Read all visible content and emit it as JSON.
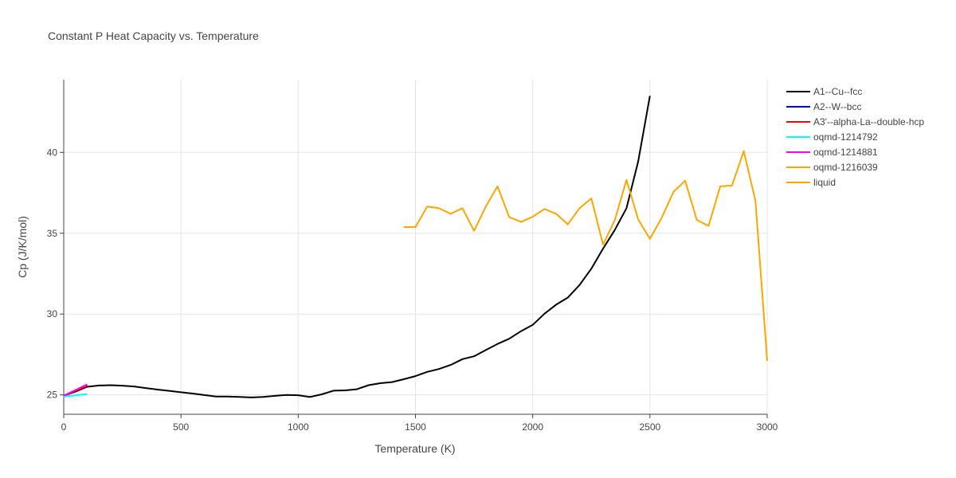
{
  "chart_data": {
    "type": "line",
    "title": "Constant P Heat Capacity vs. Temperature",
    "xlabel": "Temperature (K)",
    "ylabel": "Cp (J/K/mol)",
    "xlim": [
      0,
      3000
    ],
    "ylim": [
      23.8,
      44.5
    ],
    "xticks": [
      0,
      500,
      1000,
      1500,
      2000,
      2500,
      3000
    ],
    "yticks": [
      25,
      30,
      35,
      40
    ],
    "grid": true,
    "legend_position": "top-right",
    "series": [
      {
        "name": "A1--Cu--fcc",
        "color": "#000000",
        "x": [
          0,
          50,
          100,
          150,
          200,
          250,
          300,
          350,
          400,
          450,
          500,
          550,
          600,
          650,
          700,
          750,
          800,
          850,
          900,
          950,
          1000,
          1050,
          1100,
          1150,
          1200,
          1250,
          1300,
          1350,
          1400,
          1450,
          1500,
          1550,
          1600,
          1650,
          1700,
          1750,
          1800,
          1850,
          1900,
          1950,
          2000,
          2050,
          2100,
          2150,
          2200,
          2250,
          2300,
          2350,
          2400,
          2450,
          2500
        ],
        "y": [
          24.95,
          25.2,
          25.5,
          25.58,
          25.6,
          25.57,
          25.52,
          25.42,
          25.33,
          25.25,
          25.16,
          25.08,
          24.99,
          24.9,
          24.9,
          24.87,
          24.84,
          24.87,
          24.94,
          25.0,
          24.98,
          24.87,
          25.03,
          25.26,
          25.28,
          25.35,
          25.6,
          25.72,
          25.79,
          25.97,
          26.16,
          26.42,
          26.6,
          26.85,
          27.21,
          27.39,
          27.77,
          28.15,
          28.47,
          28.94,
          29.33,
          30.02,
          30.58,
          31.02,
          31.8,
          32.81,
          34.05,
          35.2,
          36.55,
          39.45,
          43.5
        ]
      },
      {
        "name": "A2--W--bcc",
        "color": "#0000ff",
        "x": [
          0,
          50,
          100
        ],
        "y": [
          24.95,
          25.27,
          25.6
        ]
      },
      {
        "name": "A3'--alpha-La--double-hcp",
        "color": "#ff0000",
        "x": [
          0,
          50,
          100
        ],
        "y": [
          24.95,
          25.25,
          25.55
        ]
      },
      {
        "name": "oqmd-1214792",
        "color": "#00ffff",
        "x": [
          0,
          50,
          100
        ],
        "y": [
          24.9,
          24.97,
          25.05
        ]
      },
      {
        "name": "oqmd-1214881",
        "color": "#ff00ff",
        "x": [
          0,
          50,
          100
        ],
        "y": [
          24.95,
          25.3,
          25.65
        ]
      },
      {
        "name": "oqmd-1216039",
        "color": "#ffa500",
        "x": [],
        "y": []
      },
      {
        "name": "liquid",
        "color": "#ffa500",
        "x": [
          1450,
          1500,
          1550,
          1600,
          1650,
          1700,
          1750,
          1800,
          1850,
          1900,
          1950,
          2000,
          2050,
          2100,
          2150,
          2200,
          2250,
          2300,
          2350,
          2400,
          2450,
          2500,
          2550,
          2600,
          2650,
          2700,
          2750,
          2800,
          2850,
          2900,
          2950,
          3000
        ],
        "y": [
          35.38,
          35.38,
          36.65,
          36.55,
          36.2,
          36.55,
          35.15,
          36.65,
          37.9,
          36.0,
          35.7,
          36.02,
          36.5,
          36.2,
          35.55,
          36.55,
          37.15,
          34.3,
          35.8,
          38.3,
          35.85,
          34.65,
          35.95,
          37.55,
          38.25,
          35.82,
          35.45,
          37.9,
          37.95,
          40.08,
          37.0,
          27.1
        ]
      }
    ]
  }
}
